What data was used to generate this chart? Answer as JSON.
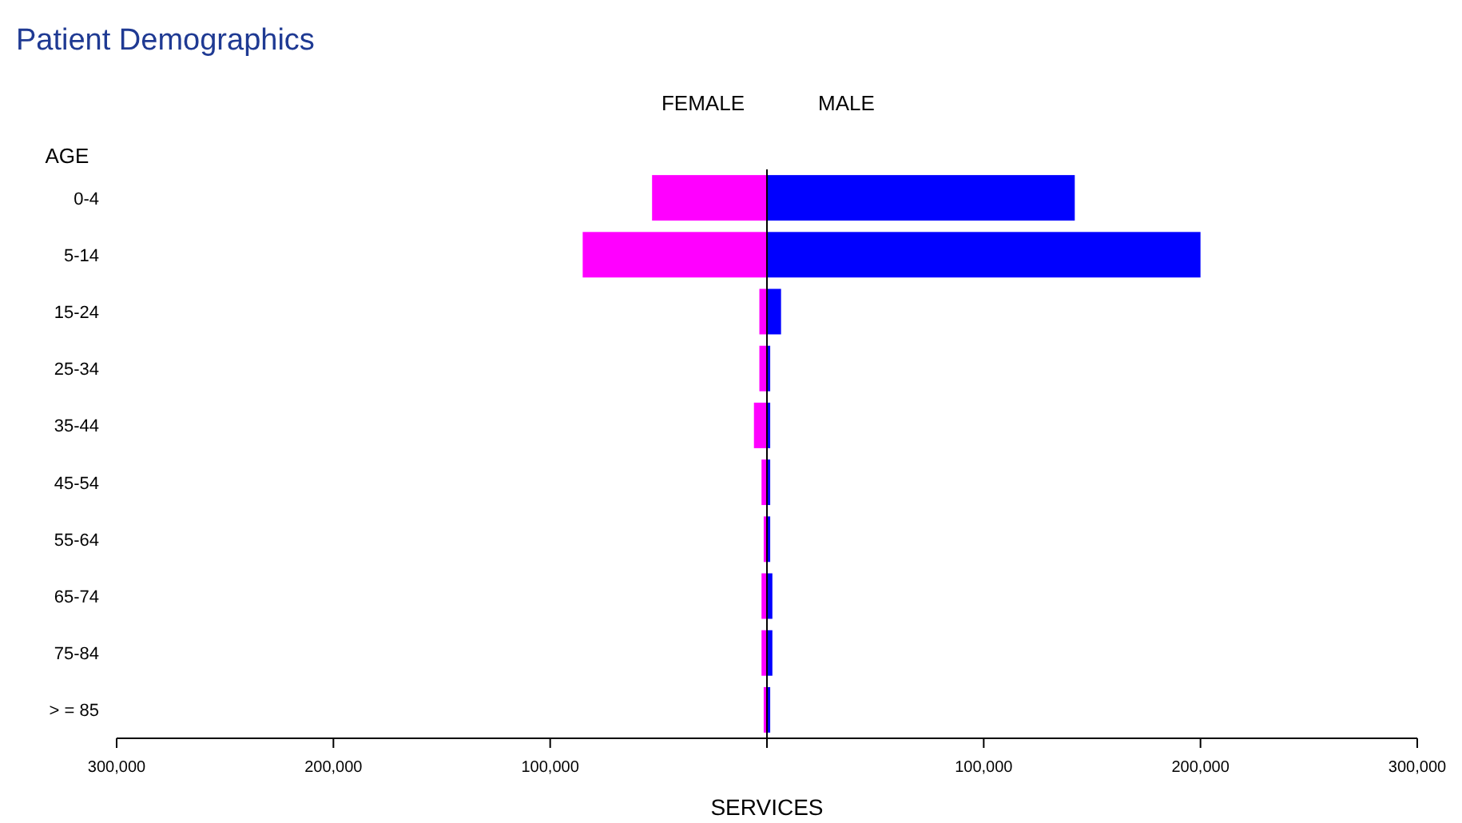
{
  "chart_data": {
    "type": "bar",
    "orientation": "horizontal",
    "title": "Patient Demographics",
    "xlabel": "SERVICES",
    "ylabel": "AGE",
    "categories": [
      "0-4",
      "5-14",
      "15-24",
      "25-34",
      "35-44",
      "45-54",
      "55-64",
      "65-74",
      "75-84",
      "> = 85"
    ],
    "series": [
      {
        "name": "FEMALE",
        "color": "#ff00ff",
        "values": [
          -53000,
          -85000,
          -3500,
          -3500,
          -6000,
          -2500,
          -1500,
          -2500,
          -2500,
          -1500
        ]
      },
      {
        "name": "MALE",
        "color": "#0000ff",
        "values": [
          142000,
          200000,
          6500,
          1500,
          1500,
          1500,
          1500,
          2500,
          2500,
          1500
        ]
      }
    ],
    "xlim": [
      -300000,
      300000
    ],
    "xticks": [
      {
        "value": -300000,
        "label": "300,000"
      },
      {
        "value": -200000,
        "label": "200,000"
      },
      {
        "value": -100000,
        "label": "100,000"
      },
      {
        "value": 0,
        "label": null
      },
      {
        "value": 100000,
        "label": "100,000"
      },
      {
        "value": 200000,
        "label": "200,000"
      },
      {
        "value": 300000,
        "label": "300,000"
      }
    ],
    "stacked": true
  }
}
